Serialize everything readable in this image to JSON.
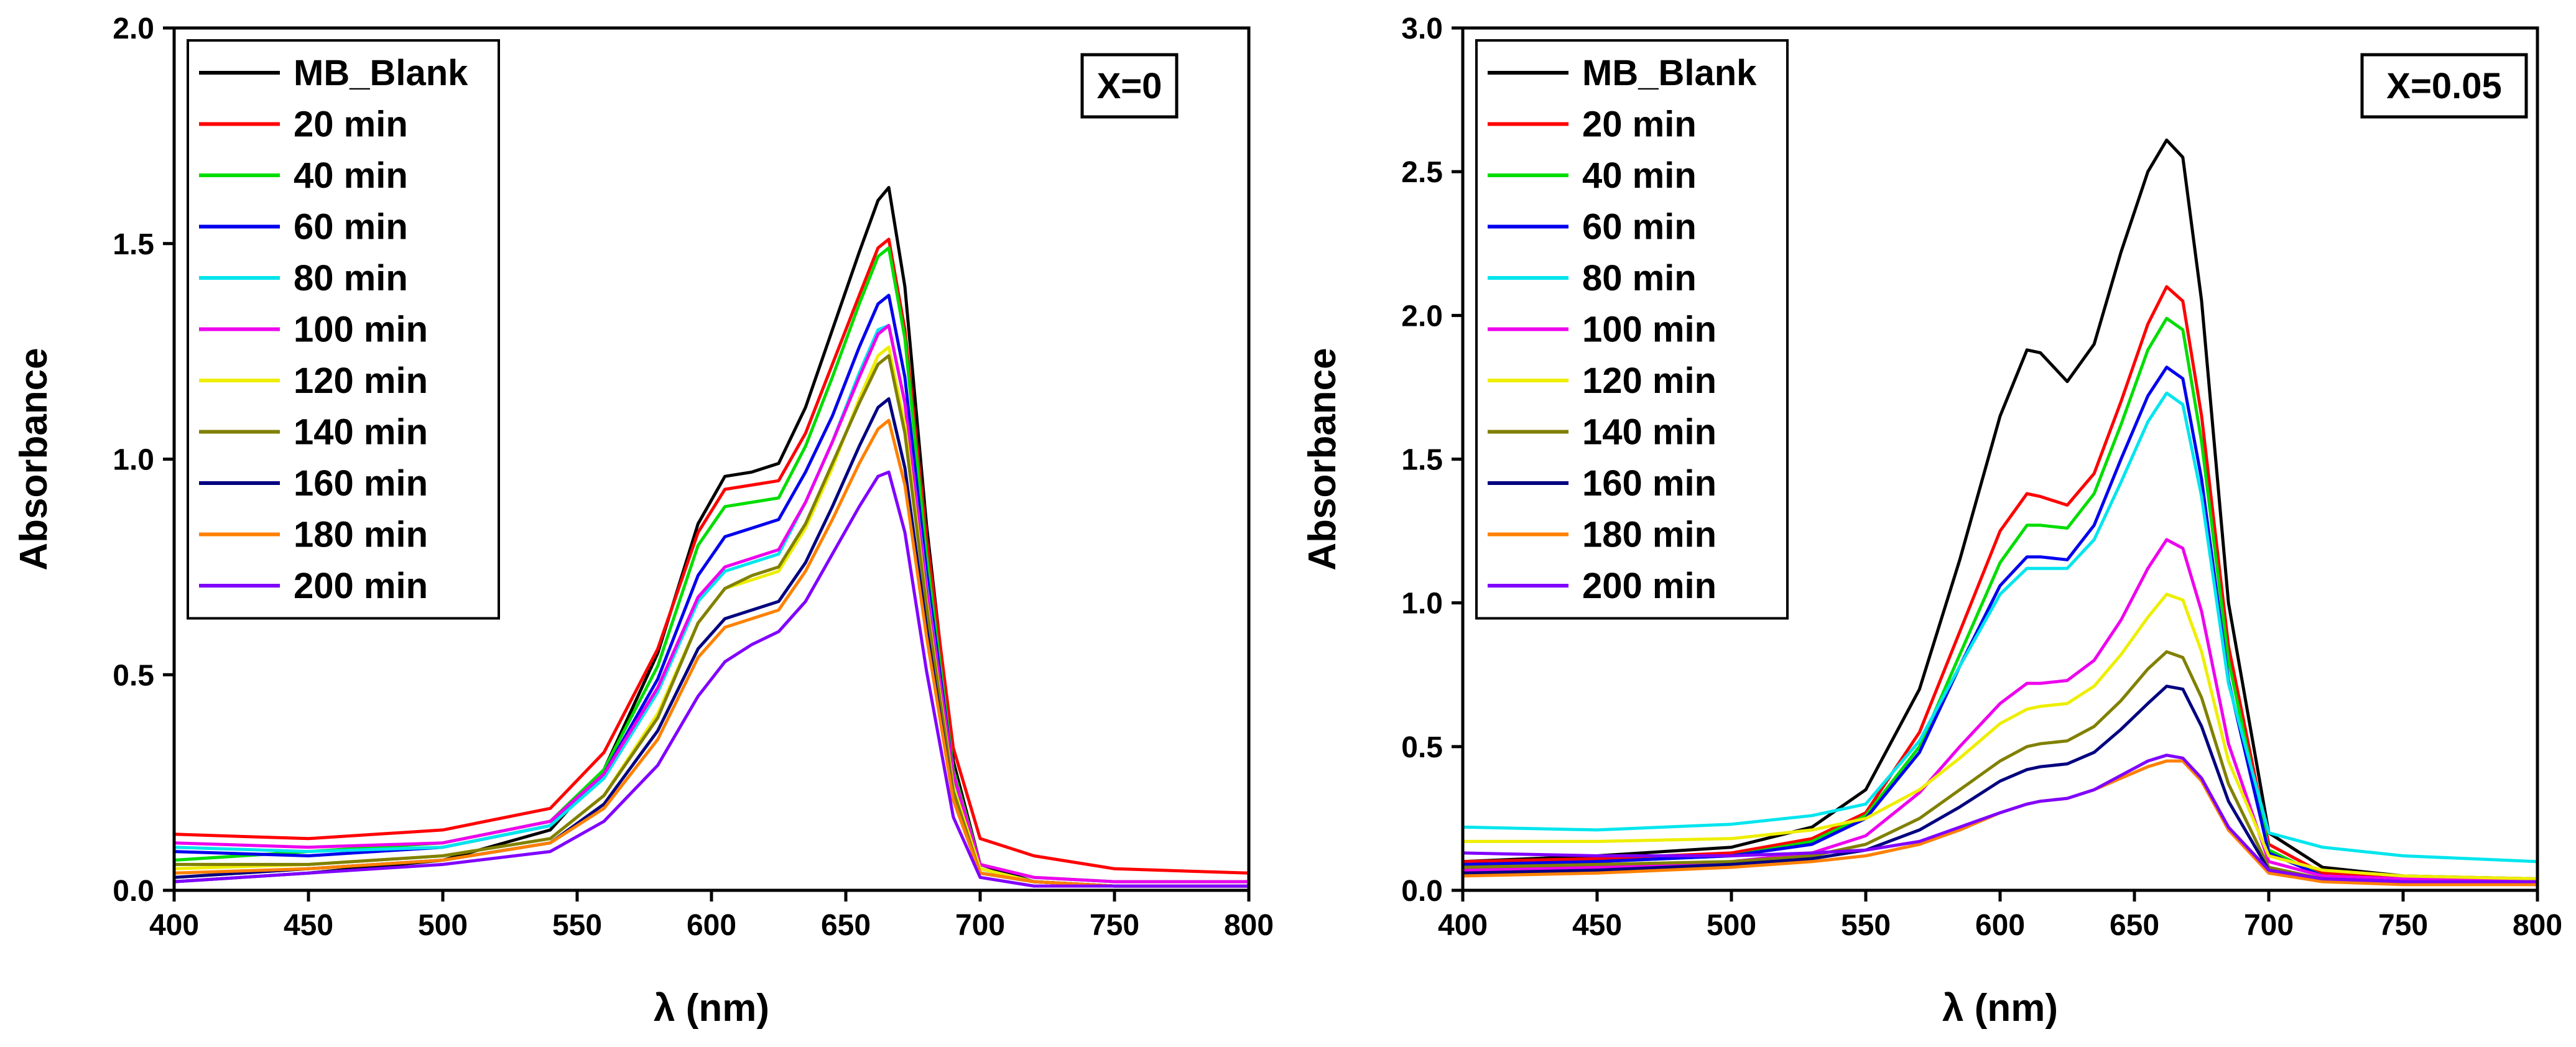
{
  "chart_data": [
    {
      "type": "line",
      "title": "",
      "panel_tag": "X=0",
      "xlabel": "λ (nm)",
      "ylabel": "Absorbance",
      "xlim": [
        400,
        800
      ],
      "ylim": [
        0,
        2.0
      ],
      "xticks": [
        400,
        450,
        500,
        550,
        600,
        650,
        700,
        750,
        800
      ],
      "yticks": [
        0.0,
        0.5,
        1.0,
        1.5,
        2.0
      ],
      "xtick_labels": [
        "400",
        "450",
        "500",
        "550",
        "600",
        "650",
        "700",
        "750",
        "800"
      ],
      "ytick_labels": [
        "0.0",
        "0.5",
        "1.0",
        "1.5",
        "2.0"
      ],
      "legend_location": "top-left",
      "grid": false,
      "x": [
        400,
        450,
        500,
        540,
        560,
        580,
        595,
        605,
        615,
        625,
        635,
        645,
        655,
        662,
        666,
        672,
        680,
        690,
        700,
        720,
        750,
        800
      ],
      "series": [
        {
          "name": "MB_Blank",
          "color": "#000000",
          "values": [
            0.02,
            0.04,
            0.07,
            0.14,
            0.28,
            0.55,
            0.85,
            0.96,
            0.97,
            0.99,
            1.12,
            1.3,
            1.48,
            1.6,
            1.63,
            1.4,
            0.85,
            0.3,
            0.06,
            0.02,
            0.01,
            0.01
          ]
        },
        {
          "name": "20 min",
          "color": "#ff0000",
          "values": [
            0.13,
            0.12,
            0.14,
            0.19,
            0.32,
            0.56,
            0.83,
            0.93,
            0.94,
            0.95,
            1.06,
            1.22,
            1.38,
            1.49,
            1.51,
            1.3,
            0.82,
            0.33,
            0.12,
            0.08,
            0.05,
            0.04
          ]
        },
        {
          "name": "40 min",
          "color": "#00dd00",
          "values": [
            0.07,
            0.09,
            0.11,
            0.16,
            0.28,
            0.52,
            0.8,
            0.89,
            0.9,
            0.91,
            1.03,
            1.19,
            1.36,
            1.47,
            1.49,
            1.28,
            0.78,
            0.28,
            0.06,
            0.03,
            0.02,
            0.02
          ]
        },
        {
          "name": "60 min",
          "color": "#0000ee",
          "values": [
            0.09,
            0.08,
            0.1,
            0.15,
            0.27,
            0.49,
            0.73,
            0.82,
            0.84,
            0.86,
            0.97,
            1.1,
            1.26,
            1.36,
            1.38,
            1.19,
            0.74,
            0.27,
            0.05,
            0.02,
            0.01,
            0.01
          ]
        },
        {
          "name": "80 min",
          "color": "#00e5ee",
          "values": [
            0.1,
            0.09,
            0.1,
            0.15,
            0.26,
            0.46,
            0.67,
            0.74,
            0.76,
            0.78,
            0.9,
            1.04,
            1.2,
            1.3,
            1.31,
            1.13,
            0.71,
            0.26,
            0.05,
            0.02,
            0.01,
            0.01
          ]
        },
        {
          "name": "100 min",
          "color": "#ee00ee",
          "values": [
            0.11,
            0.1,
            0.11,
            0.16,
            0.27,
            0.47,
            0.68,
            0.75,
            0.77,
            0.79,
            0.9,
            1.04,
            1.19,
            1.29,
            1.31,
            1.13,
            0.7,
            0.27,
            0.06,
            0.03,
            0.02,
            0.02
          ]
        },
        {
          "name": "120 min",
          "color": "#eeee00",
          "values": [
            0.05,
            0.06,
            0.08,
            0.12,
            0.22,
            0.41,
            0.62,
            0.7,
            0.72,
            0.74,
            0.84,
            0.98,
            1.14,
            1.24,
            1.26,
            1.08,
            0.67,
            0.24,
            0.05,
            0.02,
            0.01,
            0.01
          ]
        },
        {
          "name": "140 min",
          "color": "#808000",
          "values": [
            0.06,
            0.06,
            0.08,
            0.12,
            0.22,
            0.4,
            0.62,
            0.7,
            0.73,
            0.75,
            0.85,
            0.99,
            1.13,
            1.22,
            1.24,
            1.06,
            0.66,
            0.23,
            0.04,
            0.02,
            0.01,
            0.01
          ]
        },
        {
          "name": "160 min",
          "color": "#000080",
          "values": [
            0.03,
            0.05,
            0.07,
            0.11,
            0.2,
            0.37,
            0.56,
            0.63,
            0.65,
            0.67,
            0.76,
            0.89,
            1.03,
            1.12,
            1.14,
            0.98,
            0.61,
            0.21,
            0.04,
            0.02,
            0.01,
            0.01
          ]
        },
        {
          "name": "180 min",
          "color": "#ff8000",
          "values": [
            0.04,
            0.05,
            0.07,
            0.11,
            0.19,
            0.35,
            0.54,
            0.61,
            0.63,
            0.65,
            0.74,
            0.86,
            0.99,
            1.07,
            1.09,
            0.94,
            0.59,
            0.21,
            0.04,
            0.02,
            0.01,
            0.01
          ]
        },
        {
          "name": "200 min",
          "color": "#8000ff",
          "values": [
            0.02,
            0.04,
            0.06,
            0.09,
            0.16,
            0.29,
            0.45,
            0.53,
            0.57,
            0.6,
            0.67,
            0.78,
            0.89,
            0.96,
            0.97,
            0.83,
            0.51,
            0.17,
            0.03,
            0.01,
            0.01,
            0.01
          ]
        }
      ]
    },
    {
      "type": "line",
      "title": "",
      "panel_tag": "X=0.05",
      "xlabel": "λ (nm)",
      "ylabel": "Absorbance",
      "xlim": [
        400,
        800
      ],
      "ylim": [
        0,
        3.0
      ],
      "xticks": [
        400,
        450,
        500,
        550,
        600,
        650,
        700,
        750,
        800
      ],
      "yticks": [
        0.0,
        0.5,
        1.0,
        1.5,
        2.0,
        2.5,
        3.0
      ],
      "xtick_labels": [
        "400",
        "450",
        "500",
        "550",
        "600",
        "650",
        "700",
        "750",
        "800"
      ],
      "ytick_labels": [
        "0.0",
        "0.5",
        "1.0",
        "1.5",
        "2.0",
        "2.5",
        "3.0"
      ],
      "legend_location": "top-left",
      "grid": false,
      "x": [
        400,
        450,
        500,
        530,
        550,
        570,
        585,
        600,
        610,
        615,
        625,
        635,
        645,
        655,
        662,
        668,
        675,
        685,
        700,
        720,
        750,
        800
      ],
      "series": [
        {
          "name": "MB_Blank",
          "color": "#000000",
          "values": [
            0.1,
            0.12,
            0.15,
            0.22,
            0.35,
            0.7,
            1.15,
            1.65,
            1.88,
            1.87,
            1.77,
            1.9,
            2.22,
            2.5,
            2.61,
            2.55,
            2.05,
            1.0,
            0.2,
            0.08,
            0.05,
            0.04
          ]
        },
        {
          "name": "20 min",
          "color": "#ff0000",
          "values": [
            0.1,
            0.11,
            0.13,
            0.18,
            0.27,
            0.55,
            0.9,
            1.25,
            1.38,
            1.37,
            1.34,
            1.45,
            1.7,
            1.97,
            2.1,
            2.05,
            1.65,
            0.85,
            0.16,
            0.06,
            0.04,
            0.03
          ]
        },
        {
          "name": "40 min",
          "color": "#00dd00",
          "values": [
            0.08,
            0.1,
            0.12,
            0.17,
            0.26,
            0.5,
            0.82,
            1.14,
            1.27,
            1.27,
            1.26,
            1.38,
            1.62,
            1.88,
            1.99,
            1.95,
            1.56,
            0.8,
            0.14,
            0.05,
            0.04,
            0.03
          ]
        },
        {
          "name": "60 min",
          "color": "#0000ee",
          "values": [
            0.09,
            0.1,
            0.12,
            0.16,
            0.25,
            0.48,
            0.78,
            1.06,
            1.16,
            1.16,
            1.15,
            1.27,
            1.5,
            1.72,
            1.82,
            1.78,
            1.43,
            0.73,
            0.13,
            0.05,
            0.04,
            0.03
          ]
        },
        {
          "name": "80 min",
          "color": "#00e5ee",
          "values": [
            0.22,
            0.21,
            0.23,
            0.26,
            0.3,
            0.52,
            0.78,
            1.03,
            1.12,
            1.12,
            1.12,
            1.22,
            1.42,
            1.63,
            1.73,
            1.69,
            1.37,
            0.72,
            0.2,
            0.15,
            0.12,
            0.1
          ]
        },
        {
          "name": "100 min",
          "color": "#ee00ee",
          "values": [
            0.07,
            0.08,
            0.1,
            0.13,
            0.19,
            0.34,
            0.5,
            0.65,
            0.72,
            0.72,
            0.73,
            0.8,
            0.94,
            1.12,
            1.22,
            1.19,
            0.97,
            0.51,
            0.1,
            0.05,
            0.04,
            0.03
          ]
        },
        {
          "name": "120 min",
          "color": "#eeee00",
          "values": [
            0.17,
            0.17,
            0.18,
            0.21,
            0.25,
            0.35,
            0.46,
            0.58,
            0.63,
            0.64,
            0.65,
            0.71,
            0.82,
            0.95,
            1.03,
            1.01,
            0.83,
            0.45,
            0.12,
            0.07,
            0.05,
            0.04
          ]
        },
        {
          "name": "140 min",
          "color": "#808000",
          "values": [
            0.08,
            0.09,
            0.1,
            0.12,
            0.16,
            0.25,
            0.35,
            0.45,
            0.5,
            0.51,
            0.52,
            0.57,
            0.66,
            0.77,
            0.83,
            0.81,
            0.67,
            0.37,
            0.08,
            0.04,
            0.03,
            0.03
          ]
        },
        {
          "name": "160 min",
          "color": "#000080",
          "values": [
            0.06,
            0.07,
            0.09,
            0.11,
            0.14,
            0.21,
            0.29,
            0.38,
            0.42,
            0.43,
            0.44,
            0.48,
            0.56,
            0.65,
            0.71,
            0.7,
            0.57,
            0.31,
            0.07,
            0.04,
            0.03,
            0.02
          ]
        },
        {
          "name": "180 min",
          "color": "#ff8000",
          "values": [
            0.05,
            0.06,
            0.08,
            0.1,
            0.12,
            0.16,
            0.21,
            0.27,
            0.3,
            0.31,
            0.32,
            0.35,
            0.39,
            0.43,
            0.45,
            0.45,
            0.38,
            0.21,
            0.06,
            0.03,
            0.02,
            0.02
          ]
        },
        {
          "name": "200 min",
          "color": "#8000ff",
          "values": [
            0.13,
            0.12,
            0.12,
            0.13,
            0.14,
            0.17,
            0.22,
            0.27,
            0.3,
            0.31,
            0.32,
            0.35,
            0.4,
            0.45,
            0.47,
            0.46,
            0.39,
            0.22,
            0.07,
            0.04,
            0.03,
            0.03
          ]
        }
      ]
    }
  ]
}
